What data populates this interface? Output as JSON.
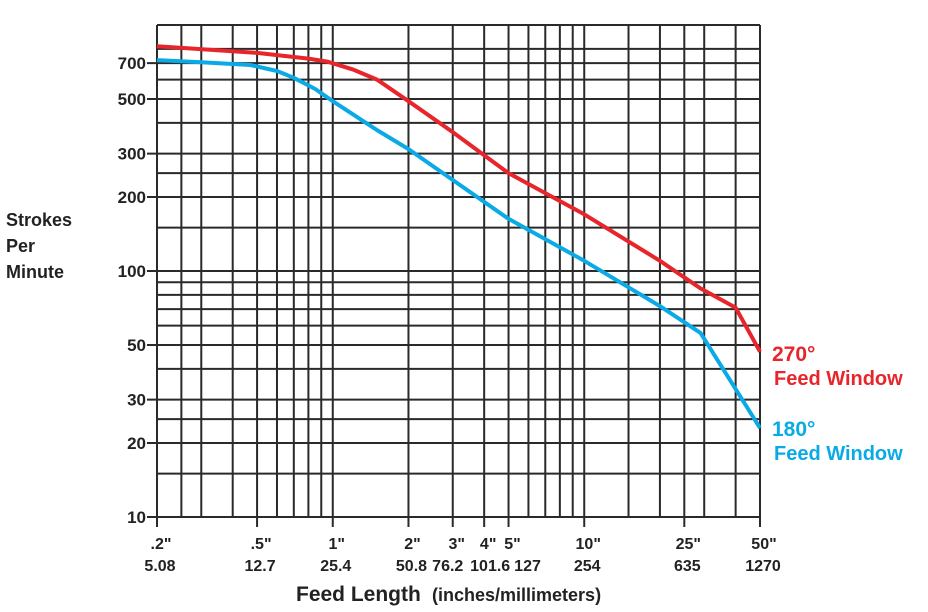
{
  "chart_data": {
    "type": "line",
    "xscale": "log",
    "yscale": "log",
    "xlim": [
      0.2,
      50
    ],
    "ylim": [
      10,
      1000
    ],
    "grid": true,
    "ylabel_lines": [
      "Strokes",
      "Per",
      "Minute"
    ],
    "xlabel": "Feed Length",
    "xlabel_units": "(inches/millimeters)",
    "y_ticks": [
      {
        "value": 700,
        "label": "700"
      },
      {
        "value": 500,
        "label": "500"
      },
      {
        "value": 300,
        "label": "300"
      },
      {
        "value": 200,
        "label": "200"
      },
      {
        "value": 100,
        "label": "100"
      },
      {
        "value": 50,
        "label": "50"
      },
      {
        "value": 30,
        "label": "30"
      },
      {
        "value": 20,
        "label": "20"
      },
      {
        "value": 10,
        "label": "10"
      }
    ],
    "x_ticks": [
      {
        "value": 0.2,
        "inch": ".2\"",
        "mm": "5.08"
      },
      {
        "value": 0.5,
        "inch": ".5\"",
        "mm": "12.7"
      },
      {
        "value": 1,
        "inch": "1\"",
        "mm": "25.4"
      },
      {
        "value": 2,
        "inch": "2\"",
        "mm": "50.8"
      },
      {
        "value": 3,
        "inch": "3\"",
        "mm": "76.2"
      },
      {
        "value": 4,
        "inch": "4\"",
        "mm": "101.6"
      },
      {
        "value": 5,
        "inch": "5\"",
        "mm": "127"
      },
      {
        "value": 10,
        "inch": "10\"",
        "mm": "254"
      },
      {
        "value": 25,
        "inch": "25\"",
        "mm": "635"
      },
      {
        "value": 50,
        "inch": "50\"",
        "mm": "1270"
      }
    ],
    "x_grid": [
      0.2,
      0.25,
      0.3,
      0.4,
      0.5,
      0.6,
      0.7,
      0.8,
      0.9,
      1,
      2,
      3,
      4,
      5,
      6,
      7,
      8,
      9,
      10,
      15,
      20,
      25,
      30,
      40,
      50
    ],
    "y_grid": [
      10,
      15,
      20,
      25,
      30,
      40,
      50,
      60,
      70,
      80,
      90,
      100,
      150,
      200,
      250,
      300,
      400,
      500,
      600,
      700,
      800,
      1000
    ],
    "series": [
      {
        "name": "270° Feed Window",
        "label_line1": "270°",
        "label_line2": "Feed Window",
        "color": "#e8252b",
        "x": [
          0.2,
          0.5,
          0.8,
          0.95,
          1.2,
          1.5,
          2,
          3,
          5,
          10,
          20,
          29,
          40,
          50
        ],
        "y": [
          820,
          770,
          730,
          710,
          660,
          600,
          490,
          367,
          250,
          170,
          110,
          85,
          71,
          47
        ]
      },
      {
        "name": "180° Feed Window",
        "label_line1": "180°",
        "label_line2": "Feed Window",
        "color": "#0aaae6",
        "x": [
          0.2,
          0.3,
          0.47,
          0.6,
          0.7,
          0.85,
          1,
          1.5,
          2,
          5,
          10,
          20,
          29,
          50
        ],
        "y": [
          720,
          705,
          688,
          650,
          610,
          550,
          490,
          374,
          313,
          163,
          110,
          72,
          56,
          23
        ]
      }
    ]
  }
}
